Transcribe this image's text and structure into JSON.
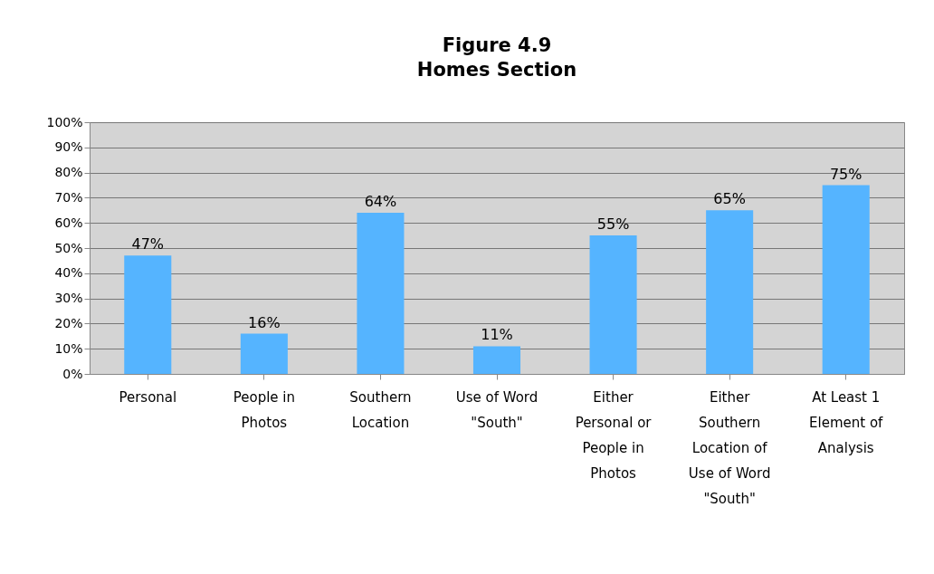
{
  "chart_data": {
    "type": "bar",
    "title": "Figure 4.9",
    "subtitle": "Homes Section",
    "categories": [
      "Personal",
      "People in Photos",
      "Southern Location",
      "Use of Word \"South\"",
      "Either Personal or People in Photos",
      "Either Southern Location of Use of Word \"South\"",
      "At Least 1 Element of Analysis"
    ],
    "values": [
      47,
      16,
      64,
      11,
      55,
      65,
      75
    ],
    "value_labels": [
      "47%",
      "16%",
      "64%",
      "11%",
      "55%",
      "65%",
      "75%"
    ],
    "color": "#55b4ff",
    "ylim": [
      0,
      100
    ],
    "yticks": [
      {
        "value": 0,
        "label": "0%"
      },
      {
        "value": 10,
        "label": "10%"
      },
      {
        "value": 20,
        "label": "20%"
      },
      {
        "value": 30,
        "label": "30%"
      },
      {
        "value": 40,
        "label": "40%"
      },
      {
        "value": 50,
        "label": "50%"
      },
      {
        "value": 60,
        "label": "60%"
      },
      {
        "value": 70,
        "label": "70%"
      },
      {
        "value": 80,
        "label": "80%"
      },
      {
        "value": 90,
        "label": "90%"
      },
      {
        "value": 100,
        "label": "100%"
      }
    ],
    "grid": "y"
  }
}
